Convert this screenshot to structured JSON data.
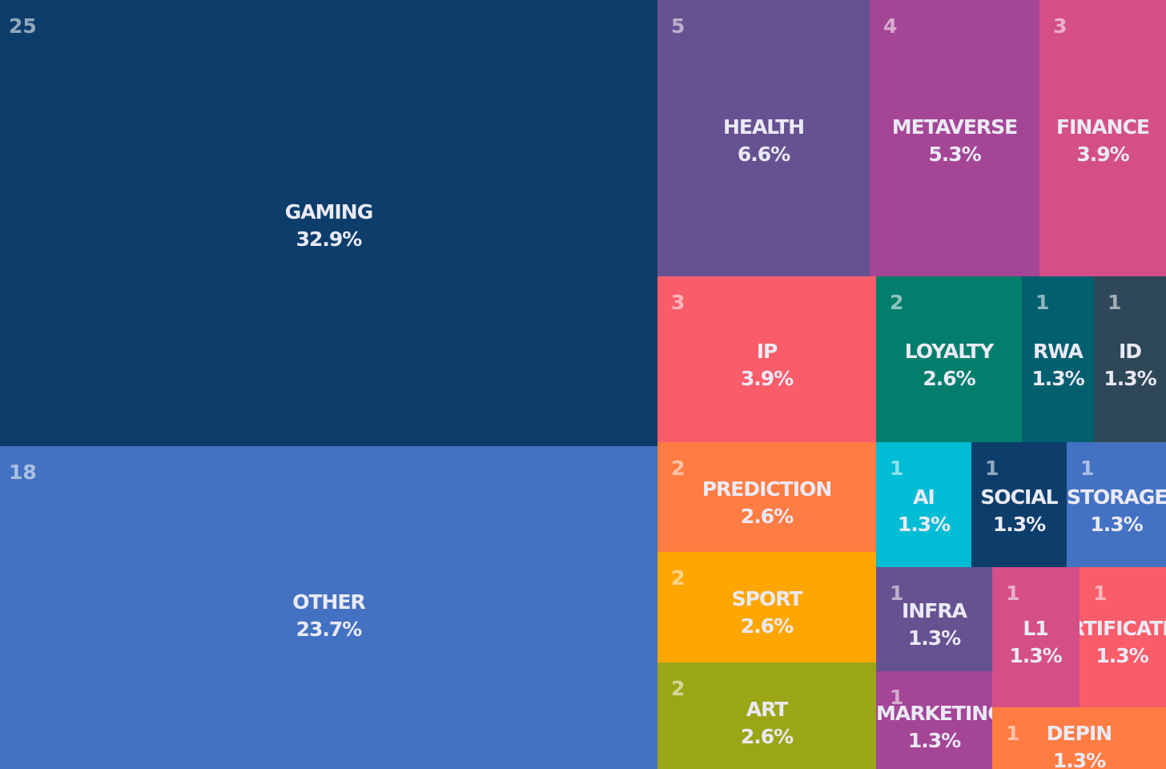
{
  "chart_data": {
    "type": "treemap",
    "items": [
      {
        "key": "gaming",
        "label": "GAMING",
        "count": "25",
        "percent": "32.9%",
        "color": "#0d3e6b"
      },
      {
        "key": "other",
        "label": "OTHER",
        "count": "18",
        "percent": "23.7%",
        "color": "#4472c2"
      },
      {
        "key": "health",
        "label": "HEALTH",
        "count": "5",
        "percent": "6.6%",
        "color": "#665191"
      },
      {
        "key": "metaverse",
        "label": "METAVERSE",
        "count": "4",
        "percent": "5.3%",
        "color": "#a44596"
      },
      {
        "key": "finance",
        "label": "FINANCE",
        "count": "3",
        "percent": "3.9%",
        "color": "#d44f88"
      },
      {
        "key": "ip",
        "label": "IP",
        "count": "3",
        "percent": "3.9%",
        "color": "#f95d6a"
      },
      {
        "key": "loyalty",
        "label": "LOYALTY",
        "count": "2",
        "percent": "2.6%",
        "color": "#037e6c"
      },
      {
        "key": "rwa",
        "label": "RWA",
        "count": "1",
        "percent": "1.3%",
        "color": "#015f6e"
      },
      {
        "key": "id",
        "label": "ID",
        "count": "1",
        "percent": "1.3%",
        "color": "#2f4858"
      },
      {
        "key": "prediction",
        "label": "PREDICTION",
        "count": "2",
        "percent": "2.6%",
        "color": "#ff7c43"
      },
      {
        "key": "ai",
        "label": "AI",
        "count": "1",
        "percent": "1.3%",
        "color": "#00bcd4"
      },
      {
        "key": "social",
        "label": "SOCIAL",
        "count": "1",
        "percent": "1.3%",
        "color": "#0d3e6b"
      },
      {
        "key": "storage",
        "label": "STORAGE",
        "count": "1",
        "percent": "1.3%",
        "color": "#4472c2"
      },
      {
        "key": "sport",
        "label": "SPORT",
        "count": "2",
        "percent": "2.6%",
        "color": "#ffa600"
      },
      {
        "key": "infra",
        "label": "INFRA",
        "count": "1",
        "percent": "1.3%",
        "color": "#665191"
      },
      {
        "key": "l1",
        "label": "L1",
        "count": "1",
        "percent": "1.3%",
        "color": "#d44f88"
      },
      {
        "key": "certification",
        "label": "CERTIFICATION",
        "count": "1",
        "percent": "1.3%",
        "color": "#f95d6a"
      },
      {
        "key": "art",
        "label": "ART",
        "count": "2",
        "percent": "2.6%",
        "color": "#9ba617"
      },
      {
        "key": "marketing",
        "label": "MARKETING",
        "count": "1",
        "percent": "1.3%",
        "color": "#a44596"
      },
      {
        "key": "depin",
        "label": "DEPIN",
        "count": "1",
        "percent": "1.3%",
        "color": "#ff7c43"
      }
    ]
  }
}
